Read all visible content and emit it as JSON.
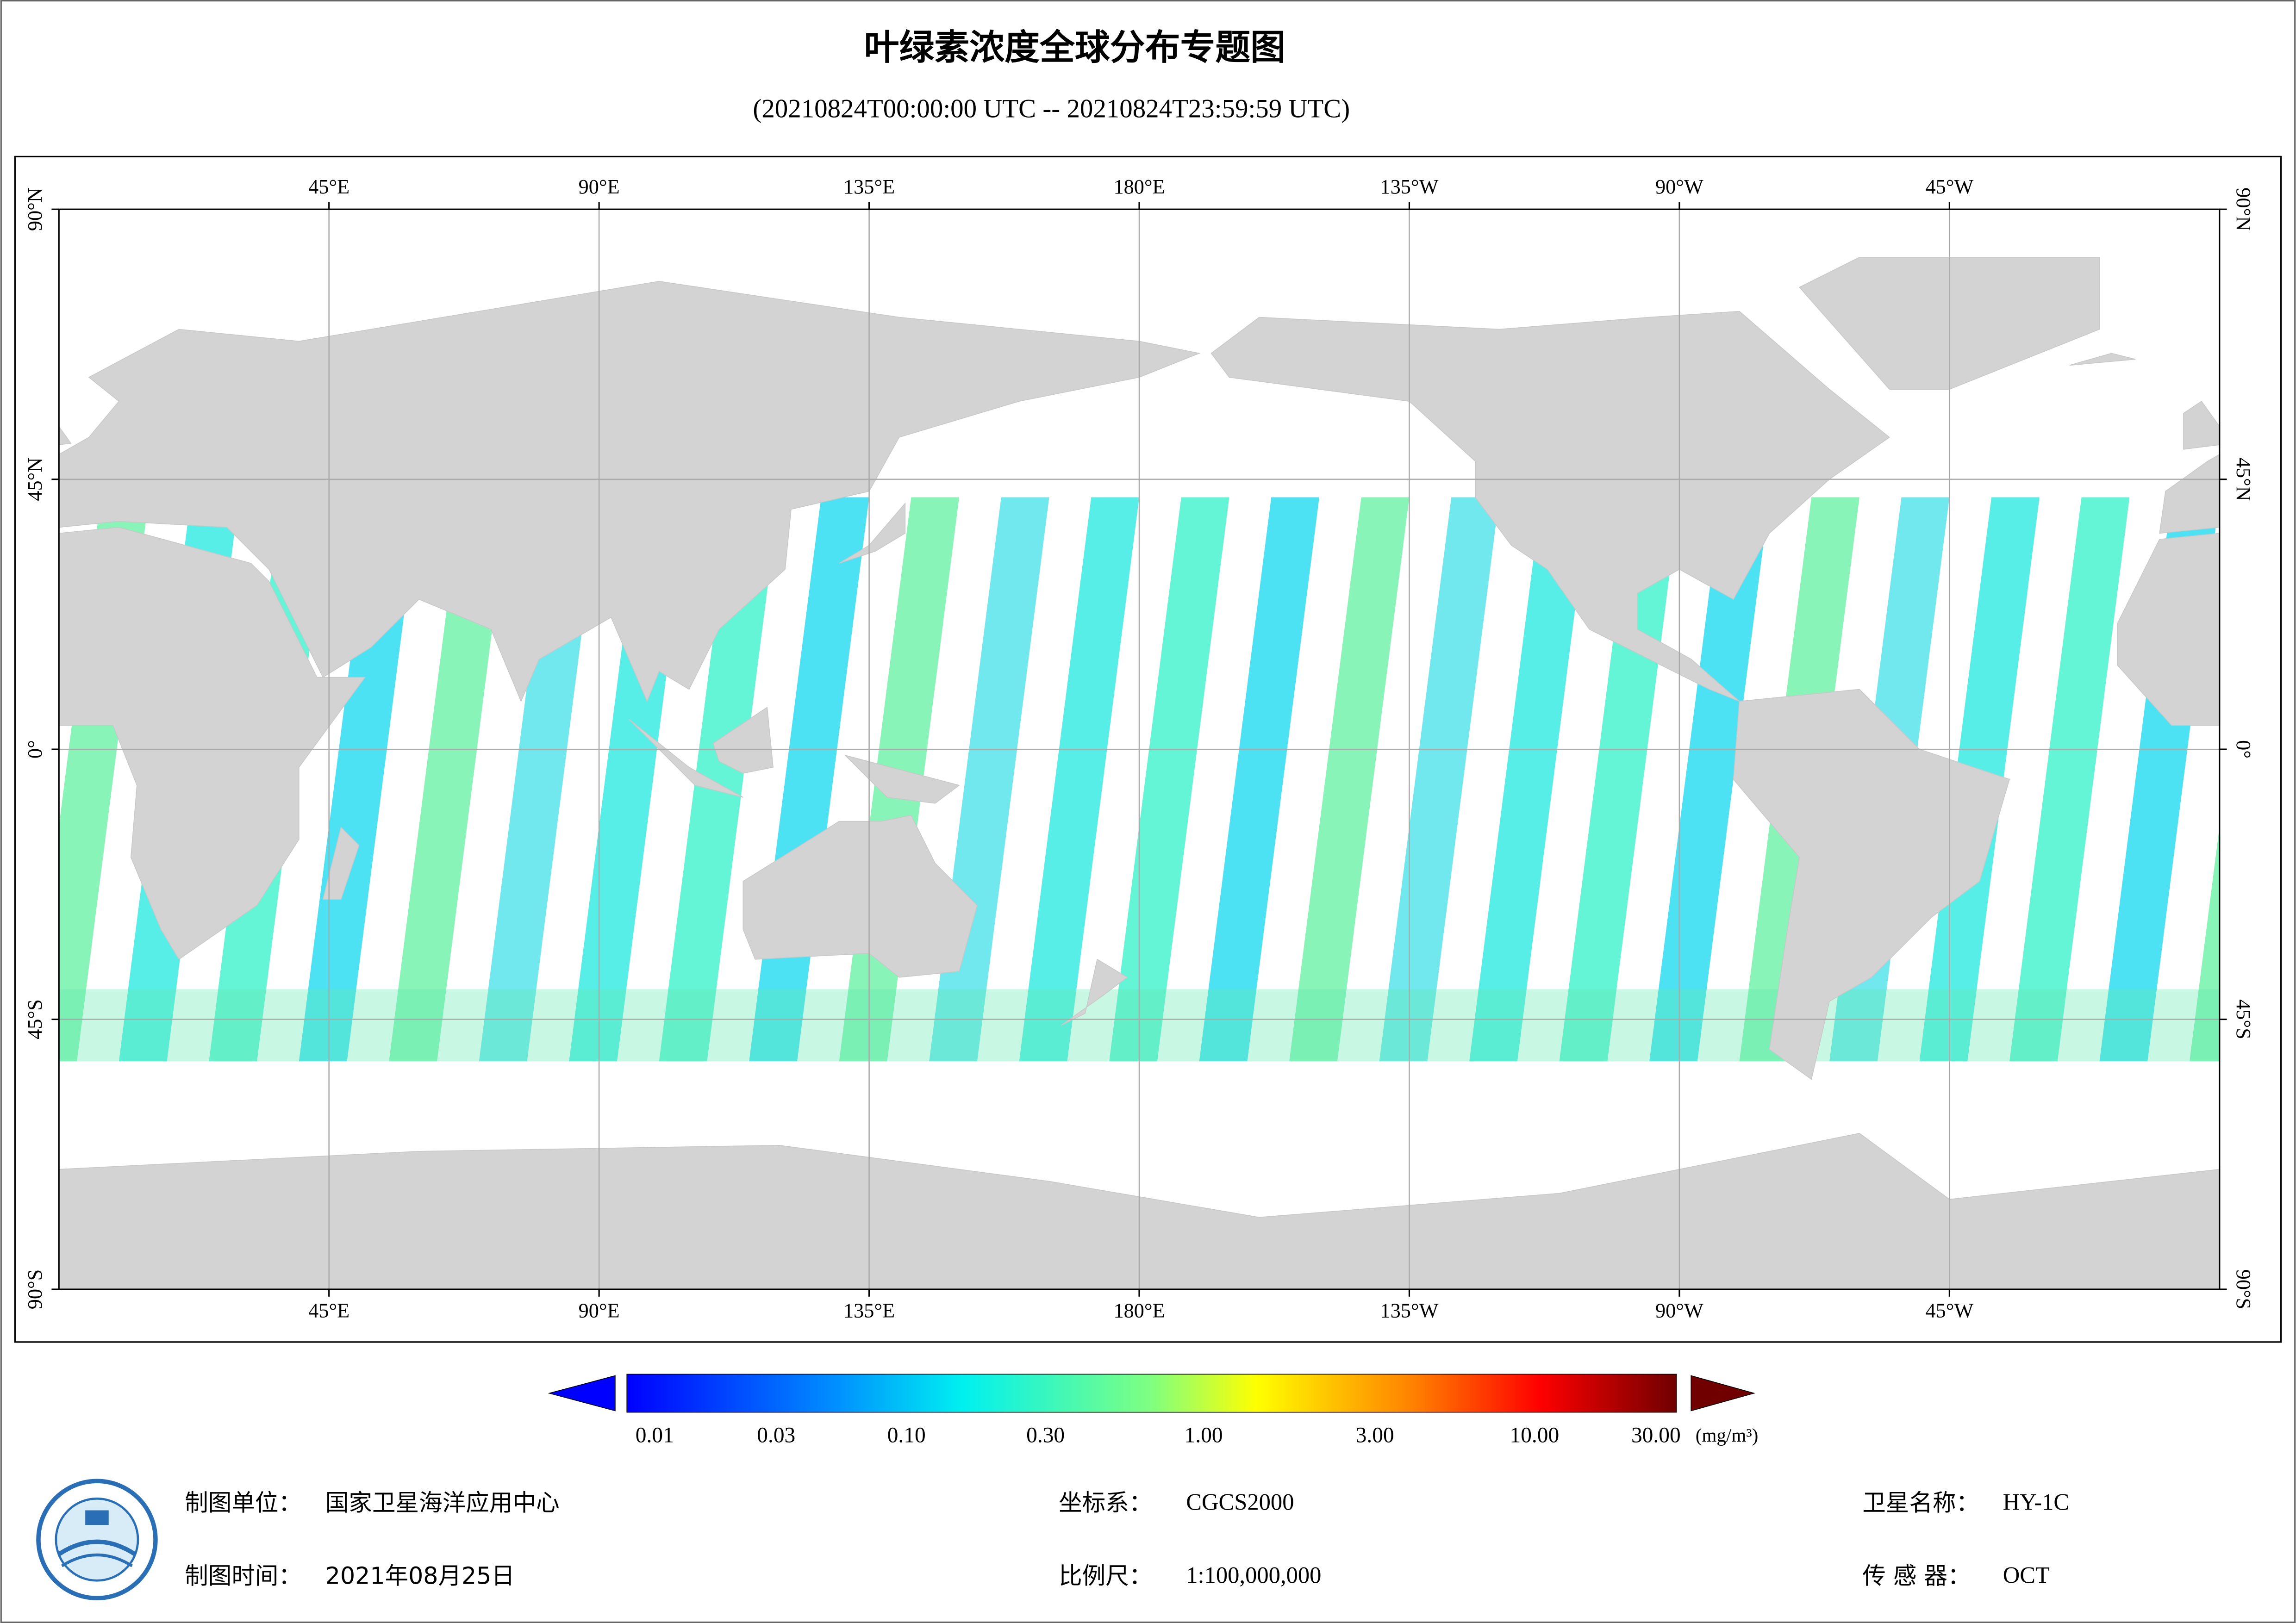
{
  "title": "叶绿素浓度全球分布专题图",
  "subtitle": "(20210824T00:00:00 UTC -- 20210824T23:59:59 UTC)",
  "map": {
    "lon_labels": [
      "45°E",
      "90°E",
      "135°E",
      "180°E",
      "135°W",
      "90°W",
      "45°W"
    ],
    "lat_labels": [
      "90°N",
      "45°N",
      "0°",
      "45°S",
      "90°S"
    ]
  },
  "colorbar": {
    "labels": [
      "0.01",
      "0.03",
      "0.10",
      "0.30",
      "1.00",
      "3.00",
      "10.00",
      "30.00"
    ],
    "unit": "(mg/m³)"
  },
  "footer": {
    "unit": {
      "label": "制图单位：",
      "value": "国家卫星海洋应用中心"
    },
    "date": {
      "label": "制图时间：",
      "value": "2021年08月25日"
    },
    "crs": {
      "label": "坐标系：",
      "value": "CGCS2000"
    },
    "scale": {
      "label": "比例尺：",
      "value": "1:100,000,000"
    },
    "satellite": {
      "label": "卫星名称：",
      "value": "HY-1C"
    },
    "sensor": {
      "label": "传 感 器：",
      "value": "OCT"
    }
  }
}
